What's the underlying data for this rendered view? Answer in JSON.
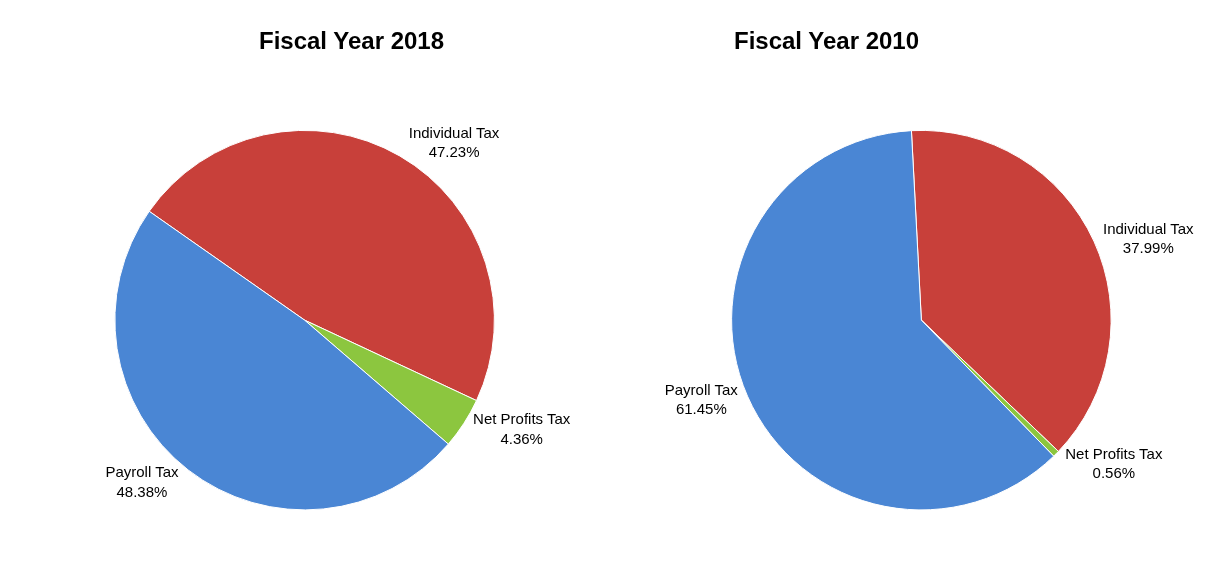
{
  "chart_data": [
    {
      "type": "pie",
      "title": "Fiscal Year 2018",
      "categories": [
        "Individual Tax",
        "Net Profits Tax",
        "Payroll Tax"
      ],
      "values": [
        47.23,
        4.36,
        48.38
      ],
      "colors": [
        "#c8403a",
        "#8cc63f",
        "#4a86d4"
      ],
      "value_labels": [
        "47.23%",
        "4.36%",
        "48.38%"
      ]
    },
    {
      "type": "pie",
      "title": "Fiscal Year 2010",
      "categories": [
        "Individual Tax",
        "Net Profits Tax",
        "Payroll Tax"
      ],
      "values": [
        37.99,
        0.56,
        61.45
      ],
      "colors": [
        "#c8403a",
        "#8cc63f",
        "#4a86d4"
      ],
      "value_labels": [
        "37.99%",
        "0.56%",
        "61.45%"
      ]
    }
  ]
}
